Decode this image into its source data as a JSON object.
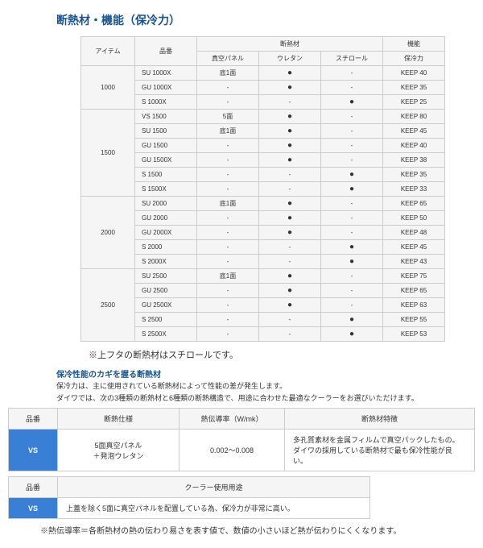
{
  "title": "断熱材・機能（保冷力）",
  "mainTable": {
    "headerTop": {
      "item": "アイテム",
      "name": "品番",
      "grp1": "断熱材",
      "grp2": "機能"
    },
    "headerSub": {
      "c1": "真空パネル",
      "c2": "ウレタン",
      "c3": "スチロール",
      "c4": "保冷力"
    },
    "groups": [
      {
        "item": "1000",
        "rows": [
          {
            "name": "SU 1000X",
            "c1": "底1面",
            "c2": "●",
            "c3": "-",
            "c4": "KEEP 40"
          },
          {
            "name": "GU 1000X",
            "c1": "-",
            "c2": "●",
            "c3": "-",
            "c4": "KEEP 35"
          },
          {
            "name": "S 1000X",
            "c1": "-",
            "c2": "-",
            "c3": "●",
            "c4": "KEEP 25"
          }
        ]
      },
      {
        "item": "1500",
        "rows": [
          {
            "name": "VS 1500",
            "c1": "5面",
            "c2": "●",
            "c3": "-",
            "c4": "KEEP 80"
          },
          {
            "name": "SU 1500",
            "c1": "底1面",
            "c2": "●",
            "c3": "-",
            "c4": "KEEP 45"
          },
          {
            "name": "GU 1500",
            "c1": "-",
            "c2": "●",
            "c3": "-",
            "c4": "KEEP 40"
          },
          {
            "name": "GU 1500X",
            "c1": "-",
            "c2": "●",
            "c3": "-",
            "c4": "KEEP 38"
          },
          {
            "name": "S 1500",
            "c1": "-",
            "c2": "-",
            "c3": "●",
            "c4": "KEEP 35"
          },
          {
            "name": "S 1500X",
            "c1": "-",
            "c2": "-",
            "c3": "●",
            "c4": "KEEP 33"
          }
        ]
      },
      {
        "item": "2000",
        "rows": [
          {
            "name": "SU 2000",
            "c1": "底1面",
            "c2": "●",
            "c3": "-",
            "c4": "KEEP 65"
          },
          {
            "name": "GU 2000",
            "c1": "-",
            "c2": "●",
            "c3": "-",
            "c4": "KEEP 50"
          },
          {
            "name": "GU 2000X",
            "c1": "-",
            "c2": "●",
            "c3": "-",
            "c4": "KEEP 48"
          },
          {
            "name": "S 2000",
            "c1": "-",
            "c2": "-",
            "c3": "●",
            "c4": "KEEP 45"
          },
          {
            "name": "S 2000X",
            "c1": "-",
            "c2": "-",
            "c3": "●",
            "c4": "KEEP 43"
          }
        ]
      },
      {
        "item": "2500",
        "rows": [
          {
            "name": "SU 2500",
            "c1": "底1面",
            "c2": "●",
            "c3": "-",
            "c4": "KEEP 75"
          },
          {
            "name": "GU 2500",
            "c1": "-",
            "c2": "●",
            "c3": "-",
            "c4": "KEEP 65"
          },
          {
            "name": "GU 2500X",
            "c1": "-",
            "c2": "●",
            "c3": "-",
            "c4": "KEEP 63"
          },
          {
            "name": "S 2500",
            "c1": "-",
            "c2": "-",
            "c3": "●",
            "c4": "KEEP 55"
          },
          {
            "name": "S 2500X",
            "c1": "-",
            "c2": "-",
            "c3": "●",
            "c4": "KEEP 53"
          }
        ]
      }
    ]
  },
  "note1": "※上フタの断熱材はスチロールです。",
  "subHeading": "保冷性能のカギを握る断熱材",
  "desc1": "保冷力は、主に使用されている断熱材によって性能の差が発生します。",
  "desc2": "ダイワでは、次の3種類の断熱材と6種類の断熱構造で、用途に合わせた最適なクーラーをお選びいただけます。",
  "spec1": {
    "h1": "品番",
    "h2": "断熱仕様",
    "h3": "熱伝導率（W/mk）",
    "h4": "断熱材特徴",
    "vs": "VS",
    "v2": "5面真空パネル\n＋発泡ウレタン",
    "v3": "0.002～0.008",
    "v4": "多孔質素材を金属フィルムで真空パックしたもの。ダイワの採用している断熱材で最も保冷性能が良い。"
  },
  "spec2": {
    "h1": "品番",
    "h2": "クーラー使用用途",
    "vs": "VS",
    "v2": "上蓋を除く5面に真空パネルを配置している為、保冷力が非常に高い。"
  },
  "note2": "※熱伝導率＝各断熱材の熱の伝わり易さを表す値で、数値の小さいほど熱が伝わりにくくなります。"
}
